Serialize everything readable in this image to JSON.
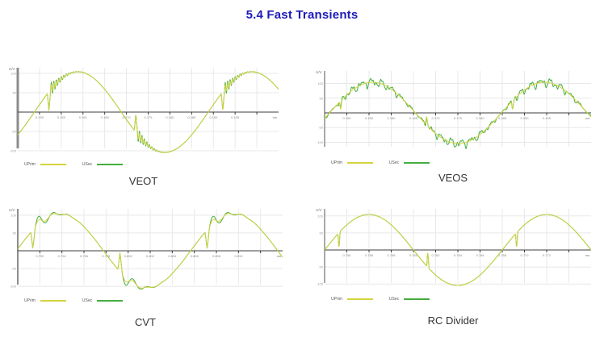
{
  "page": {
    "title": "5.4 Fast Transients",
    "title_color": "#1d1bb8",
    "background": "#ffffff"
  },
  "chart_data": [
    {
      "type": "line",
      "title": "VEOT",
      "ylabel": "U/V",
      "x_end_label": "ms",
      "grid": true,
      "legend_position": "bottom-left",
      "legend": [
        {
          "label": "UPrim",
          "color": "#d6d33e"
        },
        {
          "label": "USec",
          "color": "#44ad3f"
        }
      ],
      "ylim": [
        -125,
        125
      ],
      "y_ticks": [
        "100",
        "50",
        "-50",
        "-100"
      ],
      "x_ticks": [
        "0.150",
        "0.155",
        "0.160",
        "0.165",
        "0.170",
        "0.175",
        "0.180",
        "0.185",
        "0.190",
        "0.195"
      ],
      "waveform": {
        "kind": "sine-with-collapse-and-fast-ringing",
        "amplitude_v": 100,
        "periods_visible": 1.5,
        "start_phase_rad": -0.6,
        "notch_phase_rad": 0.47,
        "notch_width_rad": 0.12,
        "notch_floor": 0.07,
        "ring_freq": 70,
        "ring_decay": 3.2,
        "ring_amp_sec": 0.18,
        "ring_amp_prim": 0.11,
        "noise_amp": 0
      }
    },
    {
      "type": "line",
      "title": "VEOS",
      "ylabel": "U/V",
      "x_end_label": "ms",
      "grid": true,
      "legend_position": "bottom-left",
      "legend": [
        {
          "label": "UPrim",
          "color": "#d6d33e"
        },
        {
          "label": "USec",
          "color": "#44ad3f"
        }
      ],
      "ylim": [
        -125,
        125
      ],
      "y_ticks": [
        "100",
        "50",
        "-50",
        "-100"
      ],
      "x_ticks": [
        "0.150",
        "0.155",
        "0.160",
        "0.165",
        "0.170",
        "0.175",
        "0.180",
        "0.185",
        "0.190",
        "0.195"
      ],
      "waveform": {
        "kind": "sine-with-notch-and-broadband-noise",
        "amplitude_v": 100,
        "periods_visible": 1.55,
        "start_phase_rad": -0.18,
        "notch_phase_rad": 0.36,
        "notch_width_rad": 0.1,
        "notch_floor": 0.22,
        "ring_freq": 45,
        "ring_decay": 5,
        "ring_amp_sec": 0.05,
        "ring_amp_prim": 0.02,
        "noise_amp": 0.15
      }
    },
    {
      "type": "line",
      "title": "CVT",
      "ylabel": "U/V",
      "x_end_label": "ms",
      "grid": true,
      "legend_position": "bottom-left",
      "legend": [
        {
          "label": "UPrim",
          "color": "#d6d33e"
        },
        {
          "label": "USec",
          "color": "#44ad3f"
        }
      ],
      "ylim": [
        -125,
        125
      ],
      "y_ticks": [
        "100",
        "50",
        "-50",
        "-100"
      ],
      "x_ticks": [
        "0.792",
        "0.794",
        "0.796",
        "0.798",
        "0.800",
        "0.802",
        "0.804",
        "0.806",
        "0.808",
        "0.810"
      ],
      "waveform": {
        "kind": "sine-with-collapse-and-slow-damped-overshoot",
        "amplitude_v": 100,
        "periods_visible": 1.52,
        "start_phase_rad": 0.05,
        "notch_phase_rad": 0.52,
        "notch_width_rad": 0.16,
        "notch_floor": 0.1,
        "ring_freq": 12,
        "ring_decay": 2.4,
        "ring_amp_sec": 0.28,
        "ring_amp_prim": 0.15,
        "noise_amp": 0
      }
    },
    {
      "type": "line",
      "title": "RC Divider",
      "ylabel": "U/V",
      "x_end_label": "ms",
      "grid": true,
      "legend_position": "bottom-left",
      "legend": [
        {
          "label": "UPrim",
          "color": "#d6d33e"
        },
        {
          "label": "USec",
          "color": "#44ad3f"
        }
      ],
      "ylim": [
        -125,
        125
      ],
      "y_ticks": [
        "100",
        "50",
        "-50",
        "-100"
      ],
      "x_ticks": [
        "0.754",
        "0.756",
        "0.758",
        "0.760",
        "0.762",
        "0.764",
        "0.766",
        "0.768",
        "0.770",
        "0.772"
      ],
      "waveform": {
        "kind": "sine-with-narrow-clean-notch",
        "amplitude_v": 100,
        "periods_visible": 1.5,
        "start_phase_rad": 0.0,
        "notch_phase_rad": 0.47,
        "notch_width_rad": 0.08,
        "notch_floor": 0.05,
        "ring_freq": 0,
        "ring_decay": 0,
        "ring_amp_sec": 0,
        "ring_amp_prim": 0,
        "noise_amp": 0
      }
    }
  ]
}
